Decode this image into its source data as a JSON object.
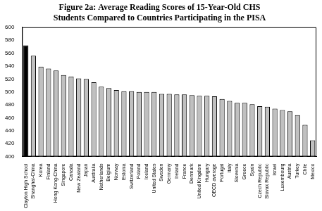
{
  "chart_data": {
    "type": "bar",
    "title": "Figure 2a: Average Reading Scores of 15-Year-Old CHS Students Compared to Countries Participating in the PISA",
    "categories": [
      "Clayton High School",
      "Shanghai-China",
      "Korea",
      "Finland",
      "Hong Kong-China",
      "Singapore",
      "Canada",
      "New Zealand",
      "Japan",
      "Australia",
      "Netherlands",
      "Belgium",
      "Norway",
      "Estonia",
      "Switzerland",
      "Poland",
      "Iceland",
      "United States",
      "Sweden",
      "Germany",
      "Ireland",
      "France",
      "Denmark",
      "United Kingdom",
      "Hungary",
      "OECD average",
      "Portugal",
      "Italy",
      "Slovenia",
      "Greece",
      "Spain",
      "Czech Republic",
      "Slovak Republic",
      "Israel",
      "Luxembourg",
      "Austria",
      "Turkey",
      "Chile",
      "Mexico"
    ],
    "values": [
      572,
      556,
      539,
      536,
      533,
      526,
      524,
      521,
      520,
      515,
      508,
      506,
      503,
      501,
      501,
      500,
      500,
      500,
      497,
      497,
      496,
      496,
      495,
      494,
      494,
      493,
      489,
      486,
      483,
      483,
      481,
      478,
      477,
      474,
      472,
      470,
      464,
      449,
      425
    ],
    "colors": [
      "#000000",
      "#c0c0c0",
      "#c0c0c0",
      "#c0c0c0",
      "#c0c0c0",
      "#c0c0c0",
      "#c0c0c0",
      "#c0c0c0",
      "#c0c0c0",
      "#c0c0c0",
      "#c0c0c0",
      "#c0c0c0",
      "#c0c0c0",
      "#c0c0c0",
      "#c0c0c0",
      "#c0c0c0",
      "#c0c0c0",
      "#c0c0c0",
      "#c0c0c0",
      "#c0c0c0",
      "#c0c0c0",
      "#c0c0c0",
      "#c0c0c0",
      "#c0c0c0",
      "#c0c0c0",
      "#c0c0c0",
      "#c0c0c0",
      "#c0c0c0",
      "#c0c0c0",
      "#c0c0c0",
      "#c0c0c0",
      "#c0c0c0",
      "#c0c0c0",
      "#c0c0c0",
      "#c0c0c0",
      "#c0c0c0",
      "#c0c0c0",
      "#c0c0c0",
      "#c0c0c0"
    ],
    "ylim": [
      400,
      600
    ],
    "yticks": [
      400,
      420,
      440,
      460,
      480,
      500,
      520,
      540,
      560,
      580,
      600
    ],
    "grid": false
  }
}
